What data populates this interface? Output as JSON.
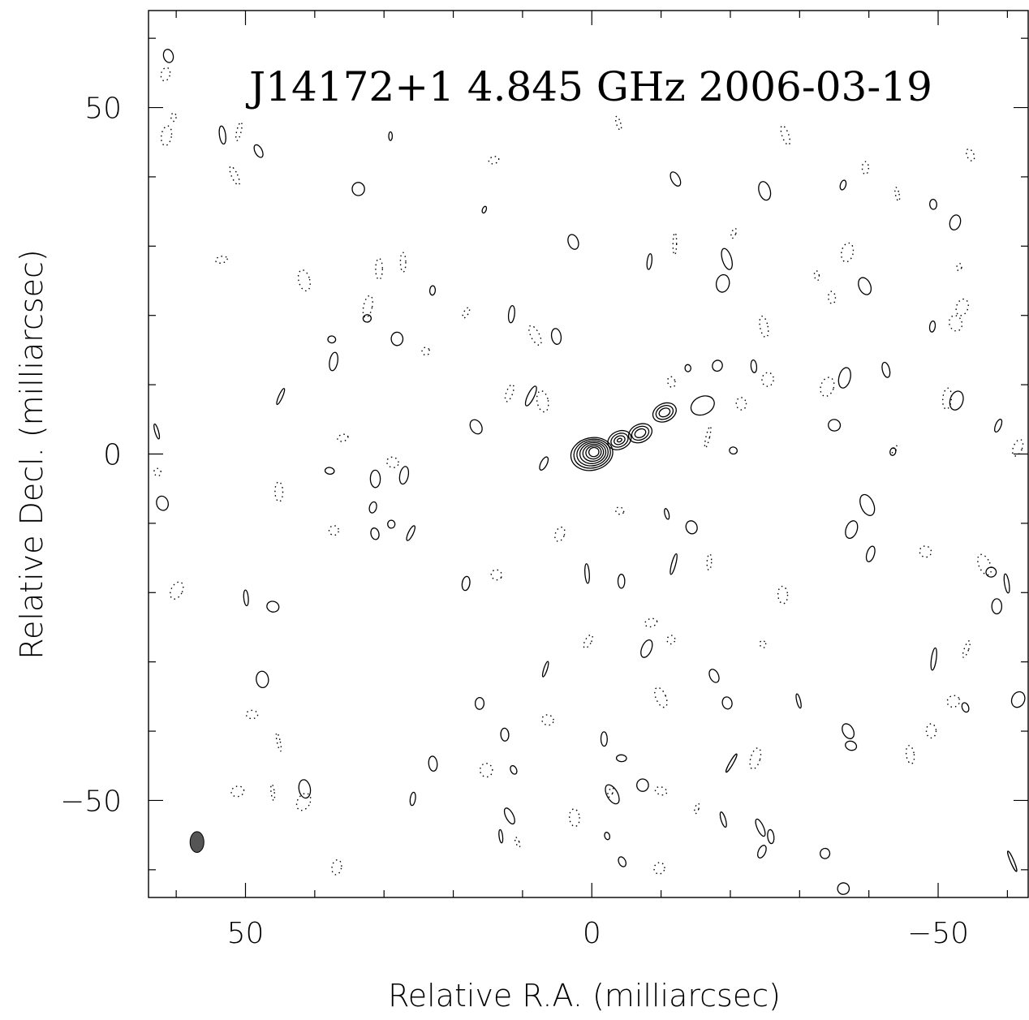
{
  "chart_data": {
    "type": "contour",
    "title": "J14172+1 4.845 GHz 2006-03-19",
    "xlabel": "Relative R.A. (milliarcsec)",
    "ylabel": "Relative Decl. (milliarcsec)",
    "xlim": [
      64,
      -63
    ],
    "ylim": [
      -64,
      64
    ],
    "x_axis_reversed": true,
    "x_ticks": [
      50,
      0,
      -50
    ],
    "x_tick_labels": [
      "50",
      "0",
      "−50"
    ],
    "y_ticks": [
      50,
      0,
      -50
    ],
    "y_tick_labels": [
      "50",
      "0",
      "−50"
    ],
    "x_minor_step": 10,
    "y_minor_step": 10,
    "core_position": [
      0,
      0
    ],
    "components": [
      {
        "ra": 0,
        "dec": 0,
        "levels": 7
      },
      {
        "ra": -4,
        "dec": 2,
        "levels": 4
      },
      {
        "ra": -7,
        "dec": 3,
        "levels": 3
      },
      {
        "ra": -10.5,
        "dec": 6,
        "levels": 3
      },
      {
        "ra": -16,
        "dec": 7,
        "levels": 1
      }
    ],
    "beam": {
      "ra": 57,
      "dec": -56,
      "width_mas": 2,
      "height_mas": 3
    }
  }
}
